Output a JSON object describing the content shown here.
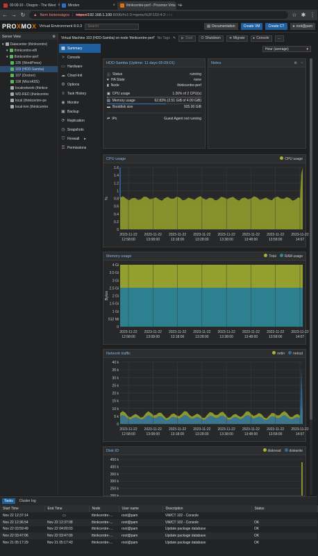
{
  "browser": {
    "tabs": [
      {
        "label": "00:00:10 - Oregon - The West",
        "color": "#c0392b",
        "active": false
      },
      {
        "label": "Minden",
        "color": "#2c6ecb",
        "active": false
      },
      {
        "label": "thinkcentre-perf - Proxmox Virtu",
        "color": "#e57000",
        "active": true
      }
    ],
    "security_label": "Nem biztonságos",
    "url_scheme": "https://",
    "url_host": "192.168.1.100",
    "url_rest": ":8006/#v1:0:=qemu%2F103:4:2:::::::"
  },
  "header": {
    "logo_a": "PRO",
    "logo_x1": "X",
    "logo_b": "MO",
    "logo_x2": "X",
    "product": "Virtual Environment 8.0.3",
    "search_placeholder": "Search",
    "documentation": "Documentation",
    "create_vm": "Create VM",
    "create_ct": "Create CT",
    "user": "root@pam"
  },
  "serverview": {
    "title": "Server View",
    "items": [
      {
        "label": "Datacenter (thinkcentre)",
        "indent": 0,
        "color": "#aaa"
      },
      {
        "label": "thinkcentre-elfi",
        "indent": 1,
        "color": "#5cb85c"
      },
      {
        "label": "thinkcentre-perf",
        "indent": 1,
        "color": "#5cb85c"
      },
      {
        "label": "105 (WordPress)",
        "indent": 2,
        "color": "#5cb85c"
      },
      {
        "label": "103 (HDD-Samba)",
        "indent": 2,
        "color": "#5cb85c",
        "selected": true
      },
      {
        "label": "107 (Docker)",
        "indent": 2,
        "color": "#5cb85c"
      },
      {
        "label": "108 (MicroK8S)",
        "indent": 2,
        "color": "#5cb85c"
      },
      {
        "label": "localnetwork (thinkce",
        "indent": 2,
        "color": "#aaa"
      },
      {
        "label": "WD-RED (thinkcentre",
        "indent": 2,
        "color": "#aaa"
      },
      {
        "label": "local (thinkcentre-pe",
        "indent": 2,
        "color": "#aaa"
      },
      {
        "label": "local-lvm (thinkcentre",
        "indent": 2,
        "color": "#aaa"
      }
    ]
  },
  "crumb": {
    "title": "Virtual Machine 103 (HDD-Samba) on node 'thinkcentre-perf'",
    "tags": "No Tags",
    "start": "Start",
    "shutdown": "Shutdown",
    "migrate": "Migrate",
    "console": "Console",
    "timeframe": "Hour (average)"
  },
  "vmnav": [
    {
      "label": "Summary",
      "icon": "summary-icon",
      "glyph": "▦",
      "selected": true
    },
    {
      "label": "Console",
      "icon": "console-icon",
      "glyph": ">"
    },
    {
      "label": "Hardware",
      "icon": "hardware-icon",
      "glyph": "▭"
    },
    {
      "label": "Cloud-Init",
      "icon": "cloud-icon",
      "glyph": "☁"
    },
    {
      "label": "Options",
      "icon": "gear-icon",
      "glyph": "⚙"
    },
    {
      "label": "Task History",
      "icon": "list-icon",
      "glyph": "≡"
    },
    {
      "label": "Monitor",
      "icon": "eye-icon",
      "glyph": "◉"
    },
    {
      "label": "Backup",
      "icon": "floppy-icon",
      "glyph": "▣"
    },
    {
      "label": "Replication",
      "icon": "retweet-icon",
      "glyph": "⟳"
    },
    {
      "label": "Snapshots",
      "icon": "history-icon",
      "glyph": "◷"
    },
    {
      "label": "Firewall",
      "icon": "shield-icon",
      "glyph": "⛉"
    },
    {
      "label": "Permissions",
      "icon": "unlock-icon",
      "glyph": "⚿"
    }
  ],
  "status": {
    "title": "HDD-Samba (Uptime: 11 days 05:09:01)",
    "rows": [
      {
        "label": "Status",
        "value": "running"
      },
      {
        "label": "HA State",
        "value": "none"
      },
      {
        "label": "Node",
        "value": "thinkcentre-perf"
      }
    ],
    "cpu_label": "CPU usage",
    "cpu_value": "1.26% of 2 CPU(s)",
    "cpu_fraction": 0.0126,
    "mem_label": "Memory usage",
    "mem_value": "62.83% (2.51 GiB of 4.00 GiB)",
    "mem_fraction": 0.6283,
    "boot_label": "Bootdisk size",
    "boot_value": "925.00 GiB",
    "ips_label": "IPs",
    "ips_value": "Guest Agent not running"
  },
  "notes": {
    "title": "Notes"
  },
  "chart_data": [
    {
      "type": "area",
      "title": "CPU usage",
      "series": [
        {
          "name": "CPU usage",
          "color": "#a8b42e"
        }
      ],
      "y_ticks": [
        "1.6",
        "1.4",
        "1.2",
        "1",
        "0.8",
        "0.6",
        "0.4",
        "0.2",
        "0"
      ],
      "ylabel": "%",
      "ylim": [
        0,
        1.6
      ],
      "baseline": 0.8,
      "spike": 1.6,
      "x_ticks": [
        [
          "2023-11-22",
          "12:58:00"
        ],
        [
          "2023-11-22",
          "13:08:00"
        ],
        [
          "2023-11-22",
          "13:18:00"
        ],
        [
          "2023-11-22",
          "13:28:00"
        ],
        [
          "2023-11-22",
          "13:38:00"
        ],
        [
          "2023-11-22",
          "13:48:00"
        ],
        [
          "2023-11-22",
          "13:58:00"
        ],
        [
          "2023-11-22",
          "14:07"
        ]
      ]
    },
    {
      "type": "area",
      "title": "Memory usage",
      "series": [
        {
          "name": "Total",
          "color": "#a8b42e"
        },
        {
          "name": "RAM usage",
          "color": "#2e8a9a"
        }
      ],
      "y_ticks": [
        "4 Gi",
        "3.5 Gi",
        "3 Gi",
        "2.5 Gi",
        "2 Gi",
        "1.5 Gi",
        "1 Gi",
        "512 Mi",
        "0"
      ],
      "ylabel": "Bytes",
      "total_gib": 4.0,
      "used_gib": 2.51,
      "ylim": [
        0,
        4
      ],
      "x_ticks": [
        [
          "2023-11-22",
          "12:58:00"
        ],
        [
          "2023-11-22",
          "13:08:00"
        ],
        [
          "2023-11-22",
          "13:18:00"
        ],
        [
          "2023-11-22",
          "13:28:00"
        ],
        [
          "2023-11-22",
          "13:38:00"
        ],
        [
          "2023-11-22",
          "13:48:00"
        ],
        [
          "2023-11-22",
          "13:58:00"
        ],
        [
          "2023-11-22",
          "14:07"
        ]
      ]
    },
    {
      "type": "area",
      "title": "Network traffic",
      "series": [
        {
          "name": "netin",
          "color": "#a8b42e"
        },
        {
          "name": "netout",
          "color": "#2e6ea0"
        }
      ],
      "y_ticks": [
        "40 k",
        "35 k",
        "30 k",
        "25 k",
        "20 k",
        "15 k",
        "10 k",
        "5 k",
        "0"
      ],
      "ylim": [
        0,
        40000
      ],
      "x_ticks": [
        [
          "2023-11-22",
          "12:58:00"
        ],
        [
          "2023-11-22",
          "13:08:00"
        ],
        [
          "2023-11-22",
          "13:18:00"
        ],
        [
          "2023-11-22",
          "13:28:00"
        ],
        [
          "2023-11-22",
          "13:38:00"
        ],
        [
          "2023-11-22",
          "13:48:00"
        ],
        [
          "2023-11-22",
          "13:58:00"
        ],
        [
          "2023-11-22",
          "14:07"
        ]
      ]
    },
    {
      "type": "area",
      "title": "Disk IO",
      "series": [
        {
          "name": "diskread",
          "color": "#a8b42e"
        },
        {
          "name": "diskwrite",
          "color": "#2e6ea0"
        }
      ],
      "y_ticks": [
        "450 k",
        "400 k",
        "350 k",
        "300 k",
        "250 k",
        "200 k"
      ],
      "ylim": [
        200000,
        450000
      ]
    }
  ],
  "tasks": {
    "tabs": [
      "Tasks",
      "Cluster log"
    ],
    "columns": [
      "Start Time",
      "End Time",
      "Node",
      "User name",
      "Description",
      "Status"
    ],
    "rows": [
      [
        "Nov 22 12:37:14",
        "",
        "thinkcentre-...",
        "root@pam",
        "VM/CT 102 - Console",
        ""
      ],
      [
        "Nov 22 12:36:54",
        "Nov 22 12:37:08",
        "thinkcentre-...",
        "root@pam",
        "VM/CT 102 - Console",
        "OK"
      ],
      [
        "Nov 22 03:59:49",
        "Nov 22 04:00:03",
        "thinkcentre-...",
        "root@pam",
        "Update package database",
        "OK"
      ],
      [
        "Nov 22 03:47:06",
        "Nov 22 03:47:09",
        "thinkcentre-...",
        "root@pam",
        "Update package database",
        "OK"
      ],
      [
        "Nov 21 05:17:29",
        "Nov 21 05:17:43",
        "thinkcentre-...",
        "root@pam",
        "Update package database",
        "OK"
      ]
    ]
  }
}
